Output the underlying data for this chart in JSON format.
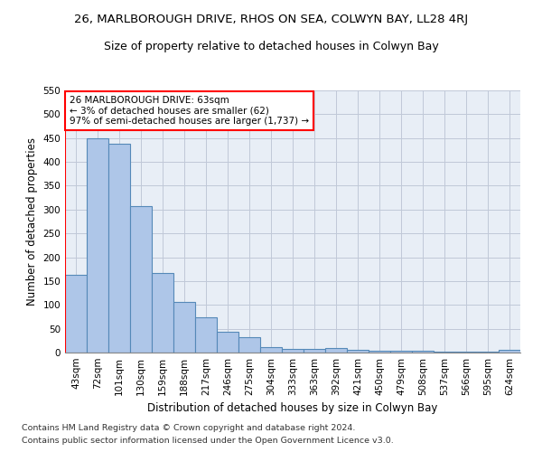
{
  "title": "26, MARLBOROUGH DRIVE, RHOS ON SEA, COLWYN BAY, LL28 4RJ",
  "subtitle": "Size of property relative to detached houses in Colwyn Bay",
  "xlabel": "Distribution of detached houses by size in Colwyn Bay",
  "ylabel": "Number of detached properties",
  "footnote1": "Contains HM Land Registry data © Crown copyright and database right 2024.",
  "footnote2": "Contains public sector information licensed under the Open Government Licence v3.0.",
  "categories": [
    "43sqm",
    "72sqm",
    "101sqm",
    "130sqm",
    "159sqm",
    "188sqm",
    "217sqm",
    "246sqm",
    "275sqm",
    "304sqm",
    "333sqm",
    "363sqm",
    "392sqm",
    "421sqm",
    "450sqm",
    "479sqm",
    "508sqm",
    "537sqm",
    "566sqm",
    "595sqm",
    "624sqm"
  ],
  "values": [
    163,
    450,
    438,
    308,
    167,
    107,
    74,
    43,
    32,
    11,
    8,
    8,
    9,
    5,
    4,
    3,
    3,
    2,
    1,
    1,
    5
  ],
  "bar_color": "#aec6e8",
  "bar_edge_color": "#5589b8",
  "annotation_box_text": "26 MARLBOROUGH DRIVE: 63sqm\n← 3% of detached houses are smaller (62)\n97% of semi-detached houses are larger (1,737) →",
  "annotation_box_color": "white",
  "annotation_box_edge_color": "red",
  "vline_color": "red",
  "ylim": [
    0,
    550
  ],
  "yticks": [
    0,
    50,
    100,
    150,
    200,
    250,
    300,
    350,
    400,
    450,
    500,
    550
  ],
  "grid_color": "#c0c8d8",
  "bg_color": "#e8eef6",
  "title_fontsize": 9.5,
  "subtitle_fontsize": 9,
  "axis_label_fontsize": 8.5,
  "tick_fontsize": 7.5,
  "annotation_fontsize": 7.5,
  "footnote_fontsize": 6.8
}
